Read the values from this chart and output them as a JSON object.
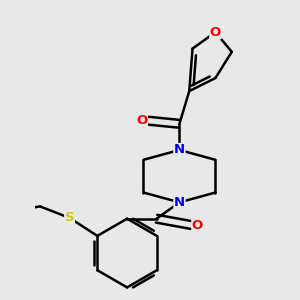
{
  "background_color": "#e8e8e8",
  "bond_color": "#000000",
  "atom_colors": {
    "O": "#ff0000",
    "N": "#0000ff",
    "S": "#cccc00",
    "C": "#000000"
  },
  "line_width": 1.8,
  "figsize": [
    3.0,
    3.0
  ],
  "dpi": 100
}
